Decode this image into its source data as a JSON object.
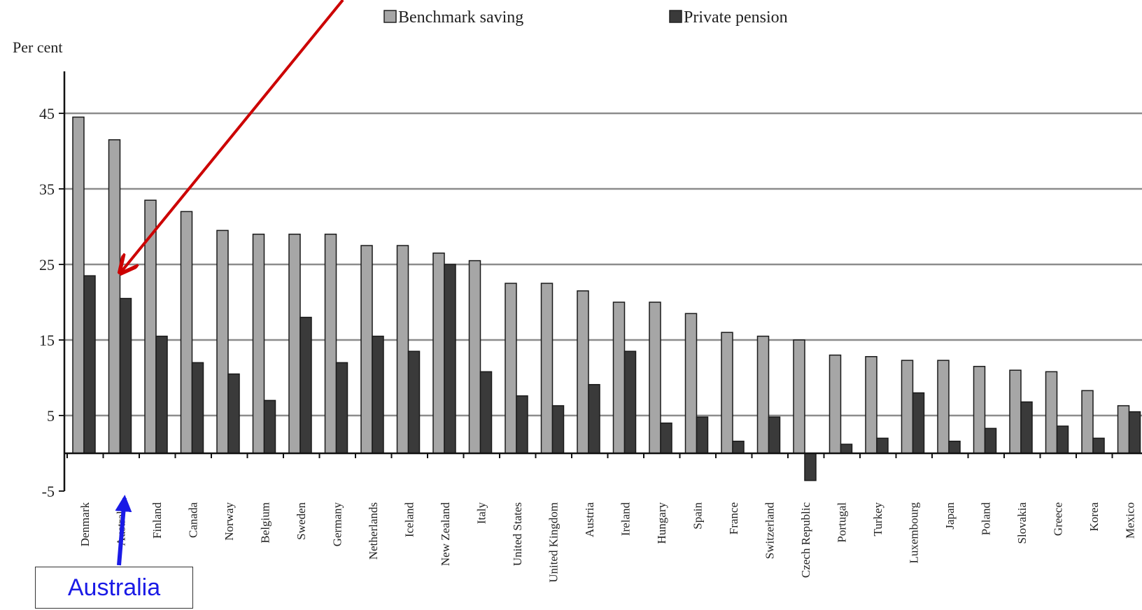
{
  "chart_data": {
    "type": "bar",
    "ylabel": "Per cent",
    "ylim": [
      -5,
      45
    ],
    "yticks": [
      -5,
      5,
      15,
      25,
      35,
      45
    ],
    "grid": true,
    "legend_position": "top",
    "categories": [
      "Denmark",
      "Australia",
      "Finland",
      "Canada",
      "Norway",
      "Belgium",
      "Sweden",
      "Germany",
      "Netherlands",
      "Iceland",
      "New Zealand",
      "Italy",
      "United States",
      "United Kingdom",
      "Austria",
      "Ireland",
      "Hungary",
      "Spain",
      "France",
      "Switzerland",
      "Czech Republic",
      "Portugal",
      "Turkey",
      "Luxembourg",
      "Japan",
      "Poland",
      "Slovakia",
      "Greece",
      "Korea",
      "Mexico"
    ],
    "series": [
      {
        "name": "Benchmark saving",
        "color": "#a6a6a6",
        "values": [
          44.5,
          41.5,
          33.5,
          32.0,
          29.5,
          29.0,
          29.0,
          29.0,
          27.5,
          27.5,
          26.5,
          25.5,
          22.5,
          22.5,
          21.5,
          20.0,
          20.0,
          18.5,
          16.0,
          15.5,
          15.0,
          13.0,
          12.8,
          12.3,
          12.3,
          11.5,
          11.0,
          10.8,
          8.3,
          6.3
        ]
      },
      {
        "name": "Private pension",
        "color": "#3a3a3a",
        "values": [
          23.5,
          20.5,
          15.5,
          12.0,
          10.5,
          7.0,
          18.0,
          12.0,
          15.5,
          13.5,
          25.0,
          10.8,
          7.6,
          6.3,
          9.1,
          13.5,
          4.0,
          4.8,
          1.6,
          4.8,
          -3.6,
          1.2,
          2.0,
          8.0,
          1.6,
          3.3,
          6.8,
          3.6,
          2.0,
          5.5
        ]
      }
    ]
  },
  "annotation": {
    "callout_label": "Australia",
    "arrow_color": "#cc0000",
    "pointer_color": "#1a1ae6"
  }
}
